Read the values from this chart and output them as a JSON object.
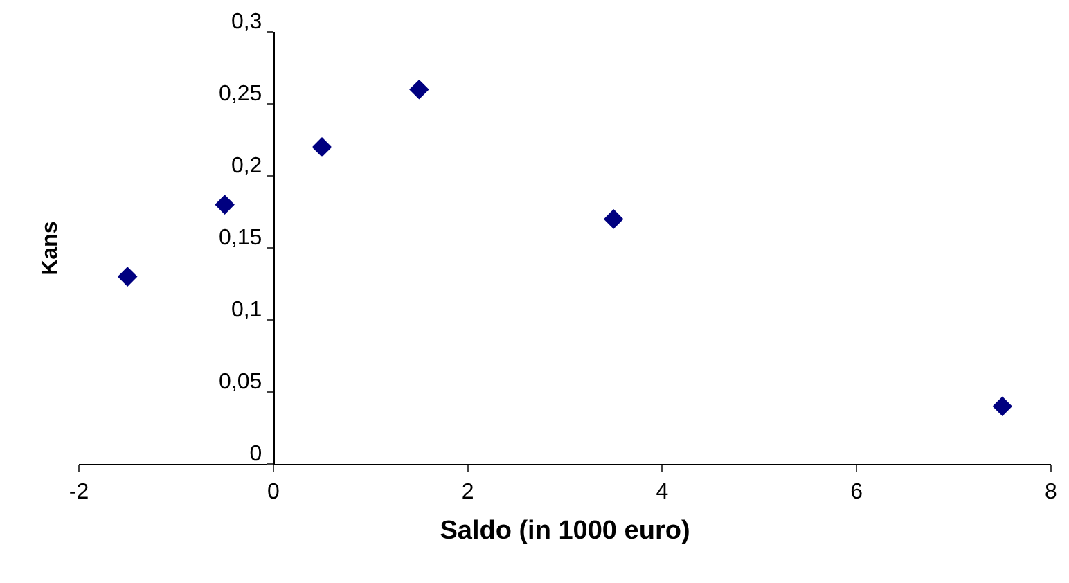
{
  "chart_data": {
    "type": "scatter",
    "xlabel": "Saldo (in 1000 euro)",
    "ylabel": "Kans",
    "x": [
      -1.5,
      -0.5,
      0.5,
      1.5,
      3.5,
      7.5
    ],
    "series": [
      {
        "color": "#000080",
        "values": [
          0.13,
          0.18,
          0.22,
          0.26,
          0.17,
          0.04
        ]
      }
    ],
    "xlim": [
      -2,
      8
    ],
    "xticks": [
      -2,
      0,
      2,
      4,
      6,
      8
    ],
    "ylim": [
      0,
      0.3
    ],
    "yticks": [
      0,
      {
        "value": 0.05,
        "label": "0,05"
      },
      {
        "value": 0.1,
        "label": "0,1"
      },
      {
        "value": 0.15,
        "label": "0,15"
      },
      {
        "value": 0.2,
        "label": "0,2"
      },
      {
        "value": 0.25,
        "label": "0,25"
      },
      {
        "value": 0.3,
        "label": "0,3"
      }
    ],
    "marker": "diamond"
  }
}
